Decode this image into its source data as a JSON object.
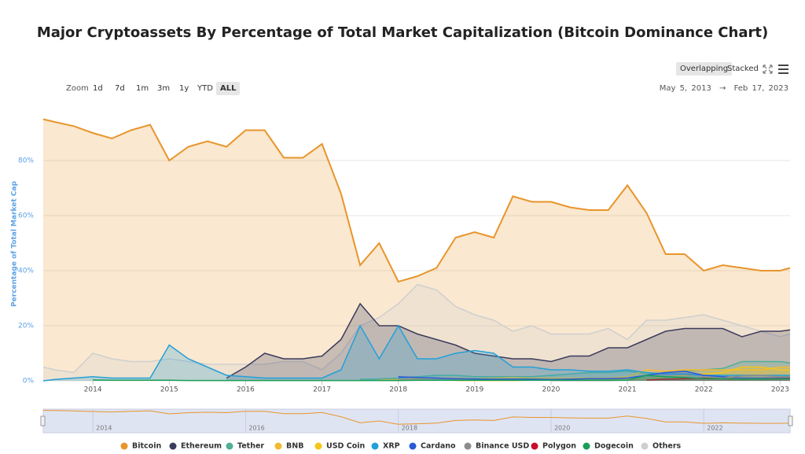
{
  "chart_data": {
    "type": "area",
    "title": "Major Cryptoassets By Percentage of Total Market Capitalization (Bitcoin Dominance Chart)",
    "y_label": "Percentage of Total Market Cap",
    "x": [
      2013.35,
      2013.5,
      2013.75,
      2014,
      2014.25,
      2014.5,
      2014.75,
      2015,
      2015.25,
      2015.5,
      2015.75,
      2016,
      2016.25,
      2016.5,
      2016.75,
      2017,
      2017.25,
      2017.5,
      2017.75,
      2018,
      2018.25,
      2018.5,
      2018.75,
      2019,
      2019.25,
      2019.5,
      2019.75,
      2020,
      2020.25,
      2020.5,
      2020.75,
      2021,
      2021.25,
      2021.5,
      2021.75,
      2022,
      2022.25,
      2022.5,
      2022.75,
      2023,
      2023.13
    ],
    "xlim": [
      2013.35,
      2023.13
    ],
    "xticks": [
      2014,
      2015,
      2016,
      2017,
      2018,
      2019,
      2020,
      2021,
      2022,
      2023
    ],
    "ylim": [
      0,
      100
    ],
    "yticks": [
      {
        "value": 0,
        "label": "0%"
      },
      {
        "value": 20,
        "label": "20%"
      },
      {
        "value": 40,
        "label": "40%"
      },
      {
        "value": 60,
        "label": "60%"
      },
      {
        "value": 80,
        "label": "80%"
      }
    ],
    "grid": true,
    "navigator_xticks": [
      2014,
      2016,
      2018,
      2020,
      2022
    ],
    "series": [
      {
        "name": "Bitcoin",
        "color": "#e8952b",
        "values": [
          95,
          94,
          92.5,
          90,
          88,
          91,
          93,
          80,
          85,
          87,
          85,
          91,
          91,
          81,
          81,
          86,
          68,
          42,
          50,
          36,
          38,
          41,
          52,
          54,
          52,
          67,
          65,
          65,
          63,
          62,
          62,
          71,
          61,
          46,
          46,
          40,
          42,
          41,
          40,
          40,
          41
        ]
      },
      {
        "name": "Ethereum",
        "color": "#3c3c5d",
        "values": [
          null,
          null,
          null,
          null,
          null,
          null,
          null,
          null,
          null,
          null,
          1,
          5,
          10,
          8,
          8,
          9,
          15,
          28,
          20,
          20,
          17,
          15,
          13,
          10,
          9,
          8,
          8,
          7,
          9,
          9,
          12,
          12,
          15,
          18,
          19,
          19,
          19,
          16,
          18,
          18,
          18.5
        ]
      },
      {
        "name": "Tether",
        "color": "#50af95",
        "values": [
          null,
          null,
          null,
          null,
          null,
          null,
          null,
          null,
          null,
          null,
          null,
          null,
          null,
          null,
          null,
          null,
          null,
          0.5,
          0.7,
          1,
          1.5,
          2,
          2,
          1.5,
          1.5,
          1.5,
          1.5,
          2,
          2.5,
          3,
          3,
          3.5,
          2.5,
          3,
          3.5,
          4,
          4.5,
          7,
          7,
          7,
          6.5
        ]
      },
      {
        "name": "BNB",
        "color": "#f3ba2f",
        "values": [
          null,
          null,
          null,
          null,
          null,
          null,
          null,
          null,
          null,
          null,
          null,
          null,
          null,
          null,
          null,
          null,
          null,
          null,
          0.3,
          0.5,
          0.8,
          1,
          1,
          0.8,
          1,
          1.2,
          1,
          1,
          1,
          1,
          1,
          1.5,
          4,
          3.5,
          4,
          4,
          4,
          4,
          4,
          5,
          5
        ]
      },
      {
        "name": "USD Coin",
        "color": "#f5c518",
        "values": [
          null,
          null,
          null,
          null,
          null,
          null,
          null,
          null,
          null,
          null,
          null,
          null,
          null,
          null,
          null,
          null,
          null,
          null,
          null,
          null,
          null,
          null,
          0.1,
          0.1,
          0.1,
          0.1,
          0.2,
          0.3,
          0.4,
          0.5,
          0.5,
          0.5,
          0.8,
          1.5,
          2,
          2.5,
          3,
          5,
          5,
          4,
          4
        ]
      },
      {
        "name": "XRP",
        "color": "#23a0d8",
        "values": [
          0,
          0.5,
          1,
          1.5,
          1,
          1,
          1,
          13,
          8,
          5,
          2,
          1.5,
          1,
          1,
          1,
          1,
          4,
          20,
          8,
          20,
          8,
          8,
          10,
          11,
          10,
          5,
          5,
          4,
          4,
          3.5,
          3.5,
          4,
          3,
          2.5,
          2.5,
          2,
          2,
          2,
          2,
          2,
          2
        ]
      },
      {
        "name": "Cardano",
        "color": "#2a5ada",
        "values": [
          null,
          null,
          null,
          null,
          null,
          null,
          null,
          null,
          null,
          null,
          null,
          null,
          null,
          null,
          null,
          null,
          null,
          null,
          null,
          1.5,
          1.2,
          1,
          0.8,
          0.7,
          0.6,
          0.6,
          0.6,
          0.5,
          0.6,
          0.8,
          0.8,
          1,
          2,
          3,
          3.5,
          2,
          1.5,
          1,
          1,
          1,
          1
        ]
      },
      {
        "name": "Binance USD",
        "color": "#8c8c8c",
        "values": [
          null,
          null,
          null,
          null,
          null,
          null,
          null,
          null,
          null,
          null,
          null,
          null,
          null,
          null,
          null,
          null,
          null,
          null,
          null,
          null,
          null,
          null,
          null,
          null,
          null,
          null,
          null,
          0.1,
          0.1,
          0.1,
          0.1,
          0.2,
          0.3,
          0.5,
          0.6,
          0.8,
          1,
          1.8,
          2,
          1.5,
          1.5
        ]
      },
      {
        "name": "Polygon",
        "color": "#c8102e",
        "values": [
          null,
          null,
          null,
          null,
          null,
          null,
          null,
          null,
          null,
          null,
          null,
          null,
          null,
          null,
          null,
          null,
          null,
          null,
          null,
          null,
          null,
          null,
          null,
          null,
          null,
          null,
          null,
          null,
          null,
          null,
          null,
          null,
          0.3,
          0.6,
          0.8,
          1,
          0.8,
          0.6,
          0.7,
          0.8,
          0.8
        ]
      },
      {
        "name": "Dogecoin",
        "color": "#18a058",
        "values": [
          null,
          null,
          null,
          0.3,
          0.2,
          0.2,
          0.2,
          0.2,
          0.1,
          0.1,
          0.1,
          0.1,
          0.1,
          0.1,
          0.1,
          0.1,
          0.1,
          0.1,
          0.1,
          0.1,
          0.2,
          0.2,
          0.2,
          0.2,
          0.2,
          0.2,
          0.2,
          0.2,
          0.2,
          0.2,
          0.2,
          0.2,
          2,
          1.5,
          1.2,
          0.8,
          0.8,
          0.6,
          0.7,
          0.7,
          0.7
        ]
      },
      {
        "name": "Others",
        "color": "#cfcfcf",
        "values": [
          5,
          4,
          3,
          10,
          8,
          7,
          7,
          8,
          7,
          6,
          6,
          6,
          6,
          7,
          7,
          4,
          10,
          20,
          23,
          28,
          35,
          33,
          27,
          24,
          22,
          18,
          20,
          17,
          17,
          17,
          19,
          15,
          22,
          22,
          23,
          24,
          22,
          20,
          18,
          16,
          17
        ]
      }
    ]
  },
  "controls": {
    "view_modes": [
      "Overlapping",
      "Stacked"
    ],
    "zoom_label": "Zoom",
    "zoom_options": [
      "1d",
      "7d",
      "1m",
      "3m",
      "1y",
      "YTD",
      "ALL"
    ],
    "date_from": "May 5, 2013",
    "date_separator": "→",
    "date_to": "Feb 17, 2023"
  }
}
